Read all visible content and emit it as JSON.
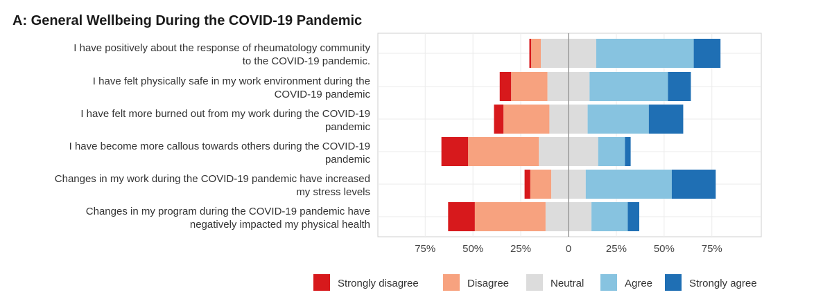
{
  "chart_data": {
    "type": "bar",
    "orientation": "horizontal-diverging",
    "title": "A: General Wellbeing During the COVID-19 Pandemic",
    "categories": [
      [
        "I have positively about the response of rheumatology community",
        "to the COVID-19 pandemic."
      ],
      [
        "I have felt physically safe in my work environment during the",
        "COVID-19 pandemic"
      ],
      [
        "I have felt more burned out from my work during the COVID-19",
        "pandemic"
      ],
      [
        "I have become more callous towards others during the COVID-19",
        "pandemic"
      ],
      [
        "Changes in my work during the COVID-19 pandemic have increased",
        "my stress levels"
      ],
      [
        "Changes in my program during the COVID-19 pandemic have",
        "negatively impacted my physical health"
      ]
    ],
    "series": [
      {
        "name": "Strongly disagree",
        "color": "#D7191C",
        "values": [
          1,
          6,
          5,
          14,
          3,
          14
        ]
      },
      {
        "name": "Disagree",
        "color": "#F7A27F",
        "values": [
          5,
          19,
          24,
          37,
          11,
          37
        ]
      },
      {
        "name": "Neutral",
        "color": "#DCDCDC",
        "values": [
          29,
          22,
          20,
          31,
          18,
          24
        ]
      },
      {
        "name": "Agree",
        "color": "#87C3E0",
        "values": [
          51,
          41,
          32,
          14,
          45,
          19
        ]
      },
      {
        "name": "Strongly agree",
        "color": "#1F6FB4",
        "values": [
          14,
          12,
          18,
          3,
          23,
          6
        ]
      }
    ],
    "neutral_split": "centered",
    "x_ticks": [
      {
        "value": -75,
        "label": "75%"
      },
      {
        "value": -50,
        "label": "50%"
      },
      {
        "value": -25,
        "label": "25%"
      },
      {
        "value": 0,
        "label": "0"
      },
      {
        "value": 25,
        "label": "25%"
      },
      {
        "value": 50,
        "label": "50%"
      },
      {
        "value": 75,
        "label": "75%"
      }
    ],
    "xlim": [
      -100,
      100
    ],
    "grid": true,
    "legend_position": "bottom"
  }
}
